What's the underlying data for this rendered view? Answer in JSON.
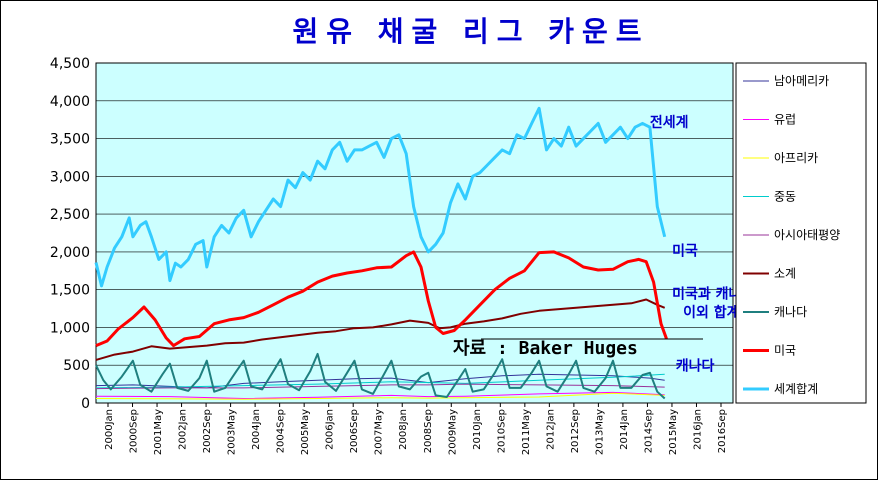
{
  "chart_data": {
    "type": "line",
    "title": "원유 채굴 리그 카운트",
    "xlabel": "",
    "ylabel": "",
    "ylim": [
      0,
      4500
    ],
    "yticks": [
      "0",
      "500",
      "1,000",
      "1,500",
      "2,000",
      "2,500",
      "3,000",
      "3,500",
      "4,000",
      "4,500"
    ],
    "ytick_values": [
      0,
      500,
      1000,
      1500,
      2000,
      2500,
      3000,
      3500,
      4000,
      4500
    ],
    "xticks": [
      "2000Jan",
      "2000Sep",
      "2001May",
      "2002Jan",
      "2002Sep",
      "2003May",
      "2004Jan",
      "2004Sep",
      "2005May",
      "2006Jan",
      "2006Sep",
      "2007May",
      "2008Jan",
      "2008Sep",
      "2009May",
      "2010Jan",
      "2010Sep",
      "2011May",
      "2012Jan",
      "2012Sep",
      "2013May",
      "2014Jan",
      "2014Sep",
      "2015May",
      "2016Jan",
      "2016Sep"
    ],
    "xlim": [
      2000.0,
      2017.25
    ],
    "grid": true,
    "legend_position": "right",
    "source_note": "자료 : Baker Huges",
    "annotations": [
      {
        "text": "전세계",
        "x": 2015.0,
        "y": 3650
      },
      {
        "text": "미국",
        "x": 2015.6,
        "y": 1950
      },
      {
        "text": "미국과 캐나다",
        "x": 2015.6,
        "y": 1380
      },
      {
        "text": "이외 합계",
        "x": 2015.9,
        "y": 1140
      },
      {
        "text": "캐나다",
        "x": 2015.7,
        "y": 430
      }
    ],
    "series": [
      {
        "name": "남아메리카",
        "color": "#333399",
        "width": 1,
        "x": [
          2000.0,
          2001.0,
          2002.0,
          2003.0,
          2004.0,
          2005.0,
          2006.0,
          2007.0,
          2008.0,
          2009.0,
          2010.0,
          2011.0,
          2012.0,
          2013.0,
          2014.0,
          2015.0,
          2015.4
        ],
        "y": [
          230,
          240,
          220,
          200,
          260,
          280,
          300,
          320,
          330,
          270,
          320,
          360,
          380,
          370,
          360,
          330,
          300
        ]
      },
      {
        "name": "유럽",
        "color": "#ff00ff",
        "width": 1,
        "x": [
          2000.0,
          2002.0,
          2004.0,
          2006.0,
          2008.0,
          2009.0,
          2010.0,
          2012.0,
          2014.0,
          2015.4
        ],
        "y": [
          90,
          85,
          60,
          75,
          100,
          85,
          90,
          120,
          140,
          110
        ]
      },
      {
        "name": "아프리카",
        "color": "#ffff00",
        "width": 1,
        "x": [
          2000.0,
          2002.0,
          2004.0,
          2006.0,
          2008.0,
          2009.0,
          2010.0,
          2012.0,
          2014.0,
          2015.4
        ],
        "y": [
          60,
          55,
          50,
          60,
          70,
          65,
          70,
          80,
          130,
          100
        ]
      },
      {
        "name": "중동",
        "color": "#00cccc",
        "width": 1,
        "x": [
          2000.0,
          2002.0,
          2004.0,
          2006.0,
          2008.0,
          2010.0,
          2012.0,
          2014.0,
          2015.4
        ],
        "y": [
          200,
          210,
          230,
          250,
          280,
          260,
          300,
          340,
          380
        ]
      },
      {
        "name": "아시아태평양",
        "color": "#993399",
        "width": 1,
        "x": [
          2000.0,
          2002.0,
          2004.0,
          2006.0,
          2008.0,
          2009.0,
          2010.0,
          2012.0,
          2014.0,
          2015.4
        ],
        "y": [
          190,
          200,
          200,
          220,
          240,
          240,
          250,
          240,
          230,
          210
        ]
      },
      {
        "name": "소계",
        "color": "#800000",
        "width": 2,
        "x": [
          2000.0,
          2000.5,
          2001.0,
          2001.5,
          2002.0,
          2002.5,
          2003.0,
          2003.5,
          2004.0,
          2004.5,
          2005.0,
          2005.5,
          2006.0,
          2006.5,
          2007.0,
          2007.5,
          2008.0,
          2008.5,
          2009.0,
          2009.3,
          2009.6,
          2010.0,
          2010.5,
          2011.0,
          2011.5,
          2012.0,
          2012.5,
          2013.0,
          2013.5,
          2014.0,
          2014.5,
          2014.9,
          2015.2,
          2015.4
        ],
        "y": [
          570,
          640,
          680,
          750,
          720,
          740,
          760,
          790,
          800,
          840,
          870,
          900,
          930,
          950,
          990,
          1000,
          1040,
          1090,
          1060,
          990,
          1000,
          1050,
          1080,
          1120,
          1180,
          1220,
          1240,
          1260,
          1280,
          1300,
          1320,
          1370,
          1300,
          1260
        ]
      },
      {
        "name": "캐나다",
        "color": "#1f7f7f",
        "width": 2,
        "x": [
          2000.0,
          2000.2,
          2000.4,
          2000.7,
          2001.0,
          2001.2,
          2001.5,
          2001.8,
          2002.0,
          2002.2,
          2002.5,
          2002.8,
          2003.0,
          2003.2,
          2003.5,
          2003.8,
          2004.0,
          2004.2,
          2004.5,
          2004.8,
          2005.0,
          2005.2,
          2005.5,
          2005.8,
          2006.0,
          2006.2,
          2006.5,
          2006.8,
          2007.0,
          2007.2,
          2007.5,
          2007.8,
          2008.0,
          2008.2,
          2008.5,
          2008.8,
          2009.0,
          2009.2,
          2009.5,
          2009.8,
          2010.0,
          2010.2,
          2010.5,
          2010.8,
          2011.0,
          2011.2,
          2011.5,
          2011.8,
          2012.0,
          2012.2,
          2012.5,
          2012.8,
          2013.0,
          2013.2,
          2013.5,
          2013.8,
          2014.0,
          2014.2,
          2014.5,
          2014.8,
          2015.0,
          2015.2,
          2015.4
        ],
        "y": [
          500,
          300,
          180,
          350,
          560,
          240,
          150,
          380,
          520,
          200,
          160,
          330,
          560,
          150,
          200,
          420,
          560,
          220,
          180,
          420,
          580,
          250,
          170,
          420,
          650,
          280,
          160,
          400,
          560,
          180,
          120,
          380,
          560,
          220,
          180,
          350,
          400,
          100,
          80,
          300,
          450,
          150,
          180,
          400,
          580,
          200,
          200,
          400,
          560,
          220,
          150,
          380,
          560,
          200,
          150,
          330,
          560,
          200,
          200,
          370,
          400,
          150,
          60
        ]
      },
      {
        "name": "미국",
        "color": "#ff0000",
        "width": 3,
        "x": [
          2000.0,
          2000.3,
          2000.6,
          2001.0,
          2001.3,
          2001.6,
          2001.9,
          2002.1,
          2002.4,
          2002.8,
          2003.2,
          2003.6,
          2004.0,
          2004.4,
          2004.8,
          2005.2,
          2005.6,
          2006.0,
          2006.4,
          2006.8,
          2007.2,
          2007.6,
          2008.0,
          2008.4,
          2008.6,
          2008.8,
          2009.0,
          2009.2,
          2009.4,
          2009.7,
          2010.0,
          2010.4,
          2010.8,
          2011.2,
          2011.6,
          2012.0,
          2012.4,
          2012.8,
          2013.2,
          2013.6,
          2014.0,
          2014.4,
          2014.7,
          2014.9,
          2015.1,
          2015.3,
          2015.45
        ],
        "y": [
          760,
          820,
          980,
          1130,
          1270,
          1100,
          860,
          760,
          850,
          880,
          1050,
          1100,
          1130,
          1200,
          1300,
          1400,
          1480,
          1600,
          1680,
          1720,
          1750,
          1790,
          1800,
          1950,
          2000,
          1800,
          1350,
          1000,
          920,
          960,
          1100,
          1300,
          1500,
          1650,
          1750,
          1990,
          2000,
          1920,
          1800,
          1760,
          1770,
          1870,
          1900,
          1870,
          1600,
          1050,
          850
        ]
      },
      {
        "name": "세계합계",
        "color": "#33ccff",
        "width": 3,
        "x": [
          2000.0,
          2000.15,
          2000.3,
          2000.5,
          2000.7,
          2000.9,
          2001.0,
          2001.2,
          2001.35,
          2001.5,
          2001.7,
          2001.9,
          2002.0,
          2002.15,
          2002.3,
          2002.5,
          2002.7,
          2002.9,
          2003.0,
          2003.2,
          2003.4,
          2003.6,
          2003.8,
          2004.0,
          2004.2,
          2004.4,
          2004.6,
          2004.8,
          2005.0,
          2005.2,
          2005.4,
          2005.6,
          2005.8,
          2006.0,
          2006.2,
          2006.4,
          2006.6,
          2006.8,
          2007.0,
          2007.2,
          2007.4,
          2007.6,
          2007.8,
          2008.0,
          2008.2,
          2008.4,
          2008.6,
          2008.8,
          2009.0,
          2009.2,
          2009.4,
          2009.6,
          2009.8,
          2010.0,
          2010.2,
          2010.4,
          2010.6,
          2010.8,
          2011.0,
          2011.2,
          2011.4,
          2011.6,
          2011.8,
          2012.0,
          2012.2,
          2012.4,
          2012.6,
          2012.8,
          2013.0,
          2013.2,
          2013.4,
          2013.6,
          2013.8,
          2014.0,
          2014.2,
          2014.4,
          2014.6,
          2014.8,
          2015.0,
          2015.2,
          2015.4
        ],
        "y": [
          1860,
          1550,
          1800,
          2050,
          2200,
          2450,
          2200,
          2350,
          2400,
          2200,
          1900,
          2000,
          1620,
          1850,
          1800,
          1900,
          2100,
          2150,
          1800,
          2200,
          2350,
          2250,
          2450,
          2550,
          2200,
          2400,
          2550,
          2700,
          2600,
          2950,
          2850,
          3050,
          2950,
          3200,
          3100,
          3350,
          3450,
          3200,
          3350,
          3350,
          3400,
          3450,
          3250,
          3500,
          3550,
          3300,
          2600,
          2200,
          2000,
          2100,
          2250,
          2650,
          2900,
          2700,
          3000,
          3050,
          3150,
          3250,
          3350,
          3300,
          3550,
          3500,
          3700,
          3900,
          3350,
          3500,
          3400,
          3650,
          3400,
          3500,
          3600,
          3700,
          3450,
          3550,
          3650,
          3500,
          3650,
          3700,
          3650,
          2600,
          2200
        ]
      }
    ]
  }
}
